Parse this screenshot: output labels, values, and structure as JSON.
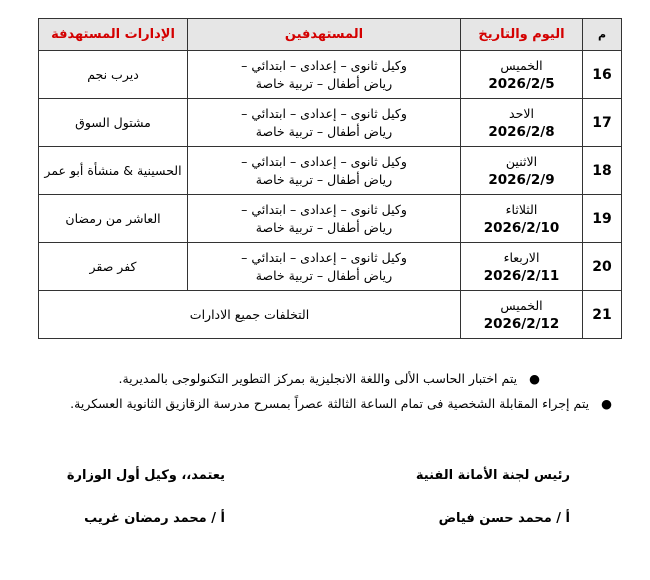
{
  "table": {
    "headers": {
      "num": "م",
      "date": "اليوم والتاريخ",
      "targets": "المستهدفين",
      "admins": "الإدارات المستهدفة"
    },
    "rows": [
      {
        "num": "16",
        "day": "الخميس",
        "date": "2026/2/5",
        "targets1": "وكيل ثانوى – إعدادى – ابتدائي –",
        "targets2": "رياض أطفال – تربية خاصة",
        "admin": "ديرب نجم"
      },
      {
        "num": "17",
        "day": "الاحد",
        "date": "2026/2/8",
        "targets1": "وكيل ثانوى – إعدادى – ابتدائي –",
        "targets2": "رياض أطفال – تربية خاصة",
        "admin": "مشتول السوق"
      },
      {
        "num": "18",
        "day": "الاثنين",
        "date": "2026/2/9",
        "targets1": "وكيل ثانوى – إعدادى – ابتدائي –",
        "targets2": "رياض أطفال – تربية خاصة",
        "admin": "الحسينية & منشأة أبو عمر"
      },
      {
        "num": "19",
        "day": "الثلاثاء",
        "date": "2026/2/10",
        "targets1": "وكيل ثانوى – إعدادى – ابتدائي –",
        "targets2": "رياض أطفال – تربية خاصة",
        "admin": "العاشر من رمضان"
      },
      {
        "num": "20",
        "day": "الاربعاء",
        "date": "2026/2/11",
        "targets1": "وكيل ثانوى – إعدادى – ابتدائي –",
        "targets2": "رياض أطفال – تربية خاصة",
        "admin": "كفر صقر"
      },
      {
        "num": "21",
        "day": "الخميس",
        "date": "2026/2/12",
        "merged": "التخلفات جميع الادارات"
      }
    ]
  },
  "notes": [
    "يتم اختبار الحاسب الألى واللغة الانجليزية بمركز التطوير التكنولوجى بالمديرية.",
    "يتم إجراء المقابلة الشخصية فى تمام الساعة الثالثة عصراً بمسرح مدرسة الزقازيق الثانوية العسكرية."
  ],
  "signatures": {
    "right_title": "رئيس لجنة الأمانة الفنية",
    "right_name": "أ / محمد حسن فياض",
    "left_title": "يعتمد،، وكيل أول الوزارة",
    "left_name": "أ / محمد رمضان غريب"
  }
}
